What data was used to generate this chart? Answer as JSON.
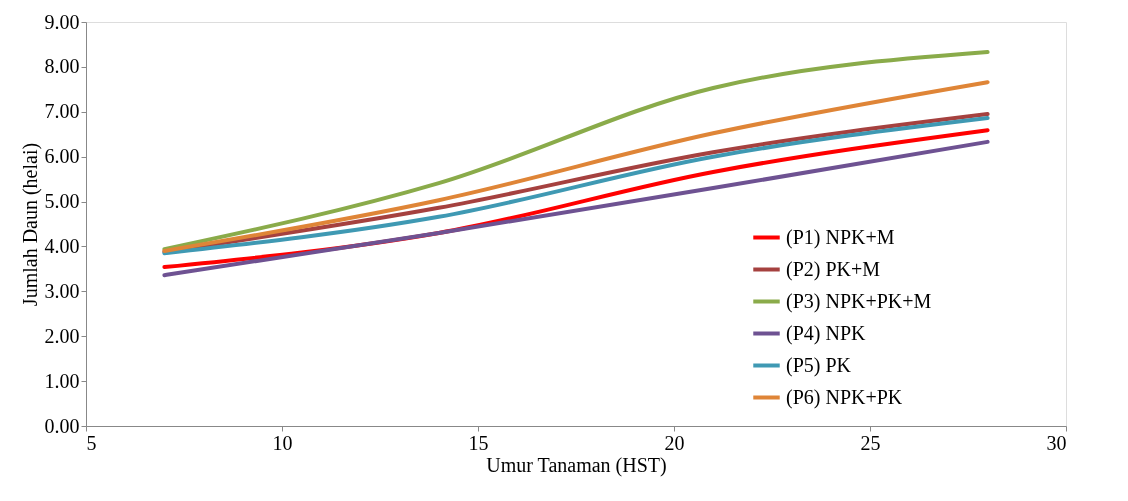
{
  "chart_data": {
    "type": "line",
    "xlabel": "Umur Tanaman (HST)",
    "ylabel": "Jumlah Daun (helai)",
    "x": [
      7,
      14,
      21,
      28
    ],
    "series": [
      {
        "name": "(P1) NPK+M",
        "color": "#ff0000",
        "values": [
          3.54,
          4.3,
          5.66,
          6.59
        ]
      },
      {
        "name": "(P2) PK+M",
        "color": "#a5413f",
        "values": [
          3.88,
          4.86,
          6.1,
          6.95
        ]
      },
      {
        "name": "(P3) NPK+PK+M",
        "color": "#8aab4a",
        "values": [
          3.94,
          5.41,
          7.53,
          8.33
        ]
      },
      {
        "name": "(P4) NPK",
        "color": "#6e5292",
        "values": [
          3.36,
          4.3,
          5.3,
          6.33
        ]
      },
      {
        "name": "(P5) PK",
        "color": "#3f99b3",
        "values": [
          3.85,
          4.66,
          6.0,
          6.86
        ]
      },
      {
        "name": "(P6) NPK+PK",
        "color": "#df8537",
        "values": [
          3.9,
          5.03,
          6.52,
          7.66
        ]
      }
    ],
    "xlim": [
      5,
      30
    ],
    "xticks": [
      5,
      10,
      15,
      20,
      25,
      30
    ],
    "ylim": [
      0,
      9
    ],
    "yticks": [
      {
        "value": 0,
        "label": "0.00"
      },
      {
        "value": 1,
        "label": "1.00"
      },
      {
        "value": 2,
        "label": "2.00"
      },
      {
        "value": 3,
        "label": "3.00"
      },
      {
        "value": 4,
        "label": "4.00"
      },
      {
        "value": 5,
        "label": "5.00"
      },
      {
        "value": 6,
        "label": "6.00"
      },
      {
        "value": 7,
        "label": "7.00"
      },
      {
        "value": 8,
        "label": "8.00"
      },
      {
        "value": 9,
        "label": "9.00"
      }
    ],
    "grid": false,
    "legend": "bottom right",
    "marker": "none",
    "line_style": "solid"
  }
}
